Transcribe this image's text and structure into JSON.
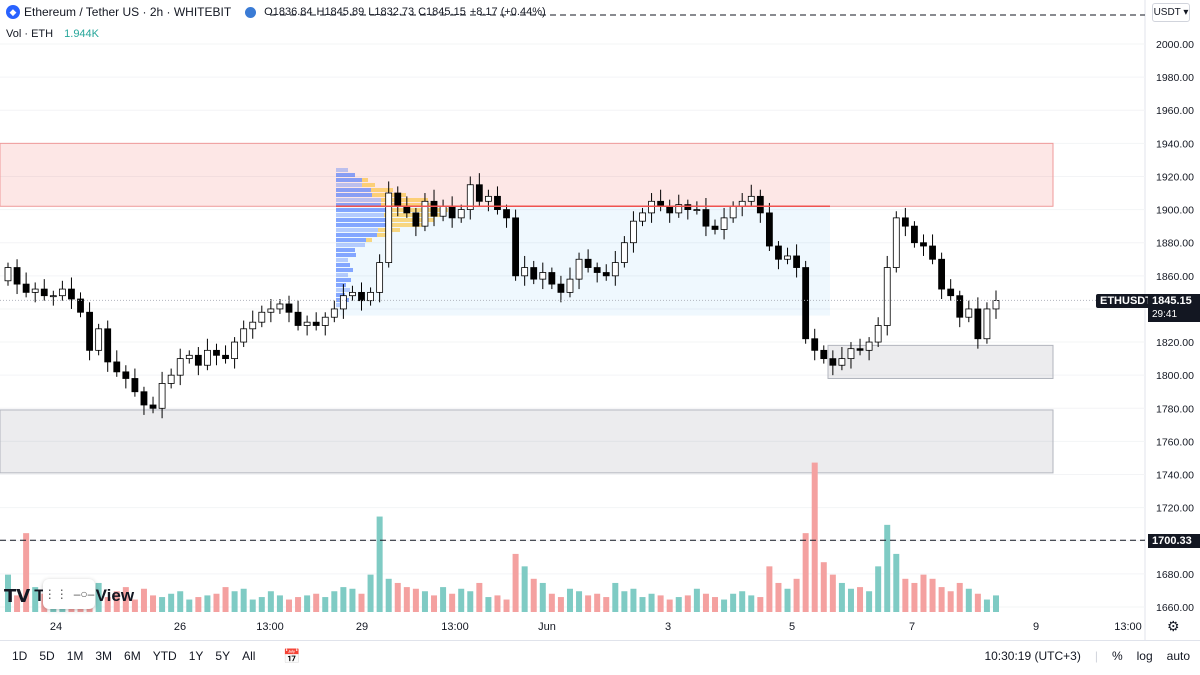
{
  "legend": {
    "logo_icon": "ethereum-logo-icon",
    "symbol_title": "Ethereum / Tether US · 2h · WHITEBIT",
    "open": "O1836.84",
    "high": "H1845.89",
    "low": "L1832.73",
    "close": "C1845.15",
    "change": "+8.17 (+0.44%)"
  },
  "volume": {
    "label": "Vol · ETH",
    "value": "1.944K"
  },
  "currency_button": "USDT",
  "price_tag": {
    "symbol": "ETHUSDT",
    "price": "1845.15",
    "countdown": "29:41"
  },
  "line_tag": "1700.33",
  "brand": {
    "name": "TradingView"
  },
  "ranges": [
    "1D",
    "5D",
    "1M",
    "3M",
    "6M",
    "YTD",
    "1Y",
    "5Y",
    "All"
  ],
  "bottom_right": {
    "time": "10:30:19 (UTC+3)",
    "percent": "%",
    "log": "log",
    "auto": "auto"
  },
  "colors": {
    "up": "#26a69a",
    "down": "#ef5350",
    "candle_up": "#ffffff",
    "candle_down": "#000000"
  },
  "chart_data": {
    "type": "candlestick",
    "y_ticks": [
      "2000.00",
      "1980.00",
      "1960.00",
      "1940.00",
      "1920.00",
      "1900.00",
      "1880.00",
      "1860.00",
      "1840.00",
      "1820.00",
      "1800.00",
      "1780.00",
      "1760.00",
      "1740.00",
      "1720.00",
      "1700.00",
      "1680.00",
      "1660.00"
    ],
    "x_ticks": [
      "24",
      "26",
      "13:00",
      "29",
      "13:00",
      "Jun",
      "3",
      "5",
      "7",
      "9",
      "13:00"
    ],
    "ylim": [
      1650,
      2010
    ],
    "zones": [
      {
        "color": "red",
        "from": 1902,
        "to": 1940
      },
      {
        "color": "blue",
        "from": 1836,
        "to": 1902
      },
      {
        "color": "gray",
        "from": 1798,
        "to": 1818
      },
      {
        "color": "gray",
        "from": 1741,
        "to": 1779
      }
    ],
    "hlines": [
      {
        "value": 1902,
        "color": "#ef5350"
      },
      {
        "value": 1700.33,
        "style": "dashed"
      },
      {
        "value": 2018,
        "style": "dashed"
      }
    ],
    "closes": [
      1865,
      1855,
      1850,
      1852,
      1848,
      1848,
      1852,
      1846,
      1838,
      1815,
      1828,
      1808,
      1802,
      1798,
      1790,
      1782,
      1780,
      1795,
      1800,
      1810,
      1812,
      1806,
      1815,
      1812,
      1810,
      1820,
      1828,
      1832,
      1838,
      1840,
      1843,
      1838,
      1830,
      1832,
      1830,
      1835,
      1840,
      1848,
      1850,
      1845,
      1850,
      1868,
      1910,
      1902,
      1898,
      1890,
      1905,
      1896,
      1902,
      1895,
      1900,
      1915,
      1905,
      1908,
      1900,
      1895,
      1860,
      1865,
      1858,
      1862,
      1855,
      1850,
      1858,
      1870,
      1865,
      1862,
      1860,
      1868,
      1880,
      1893,
      1898,
      1905,
      1902,
      1898,
      1903,
      1900,
      1900,
      1890,
      1888,
      1895,
      1902,
      1905,
      1908,
      1898,
      1878,
      1870,
      1872,
      1865,
      1822,
      1815,
      1810,
      1806,
      1810,
      1816,
      1815,
      1820,
      1830,
      1865,
      1895,
      1890,
      1880,
      1878,
      1870,
      1852,
      1848,
      1835,
      1840,
      1822,
      1840,
      1845.15
    ],
    "volumes": [
      45,
      20,
      95,
      30,
      22,
      18,
      25,
      15,
      30,
      22,
      35,
      18,
      25,
      30,
      15,
      28,
      20,
      18,
      22,
      25,
      15,
      18,
      20,
      22,
      30,
      25,
      28,
      15,
      18,
      25,
      20,
      15,
      18,
      20,
      22,
      18,
      25,
      30,
      28,
      22,
      45,
      115,
      40,
      35,
      30,
      28,
      25,
      20,
      30,
      22,
      28,
      25,
      35,
      18,
      20,
      15,
      70,
      55,
      40,
      35,
      22,
      18,
      28,
      25,
      20,
      22,
      18,
      35,
      25,
      28,
      18,
      22,
      20,
      15,
      18,
      20,
      28,
      22,
      18,
      15,
      22,
      25,
      20,
      18,
      55,
      35,
      28,
      40,
      95,
      180,
      60,
      45,
      35,
      28,
      30,
      25,
      55,
      105,
      70,
      40,
      35,
      45,
      40,
      30,
      25,
      35,
      28,
      22,
      15,
      20
    ]
  }
}
